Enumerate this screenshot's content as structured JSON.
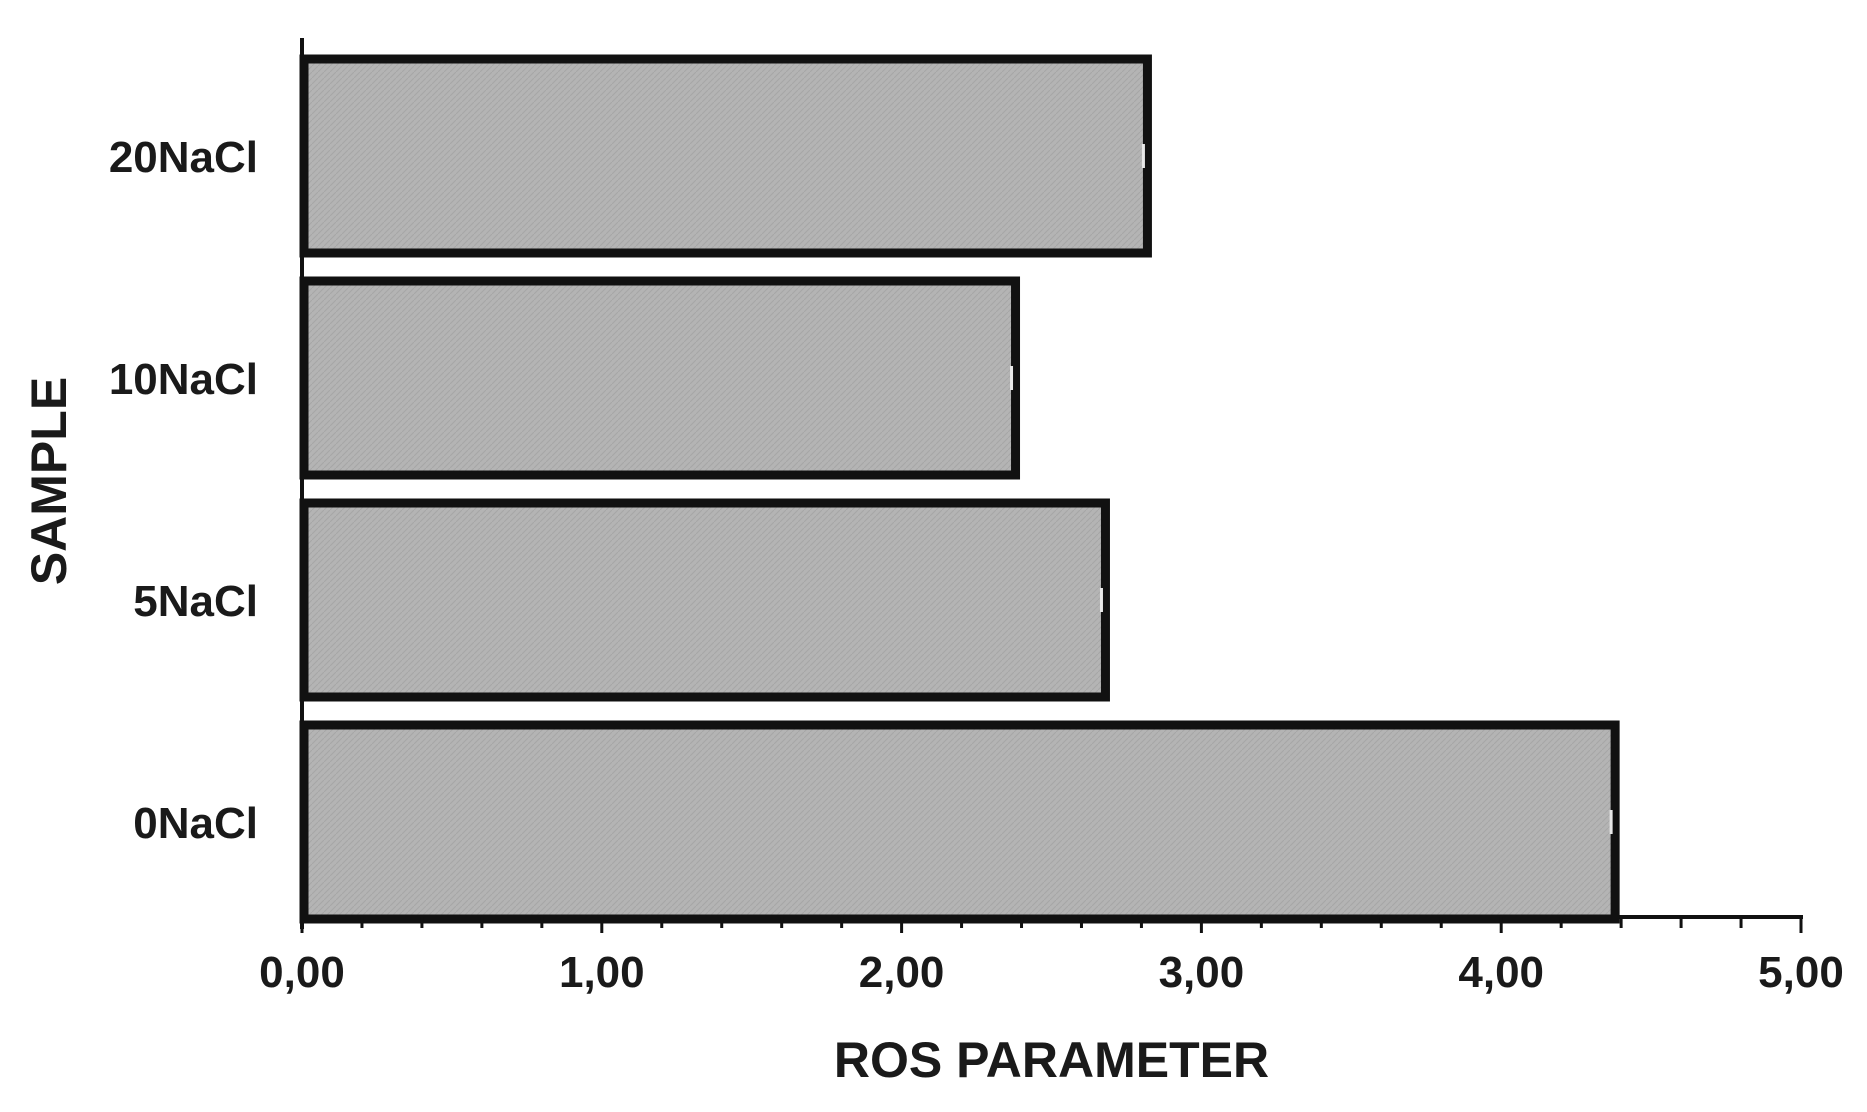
{
  "chart_data": {
    "type": "bar",
    "orientation": "horizontal",
    "title": "",
    "xlabel": "ROS PARAMETER",
    "ylabel": "SAMPLE",
    "categories": [
      "20NaCl",
      "10NaCl",
      "5NaCl",
      "0NaCl"
    ],
    "values": [
      2.82,
      2.38,
      2.68,
      4.38
    ],
    "xlim": [
      0,
      5
    ],
    "x_ticks": [
      "0,00",
      "1,00",
      "2,00",
      "3,00",
      "4,00",
      "5,00"
    ],
    "grid": false,
    "legend": "none",
    "colors": {
      "bar_fill": "#b4b4b4",
      "bar_stroke": "#111111",
      "axis": "#111111"
    }
  }
}
